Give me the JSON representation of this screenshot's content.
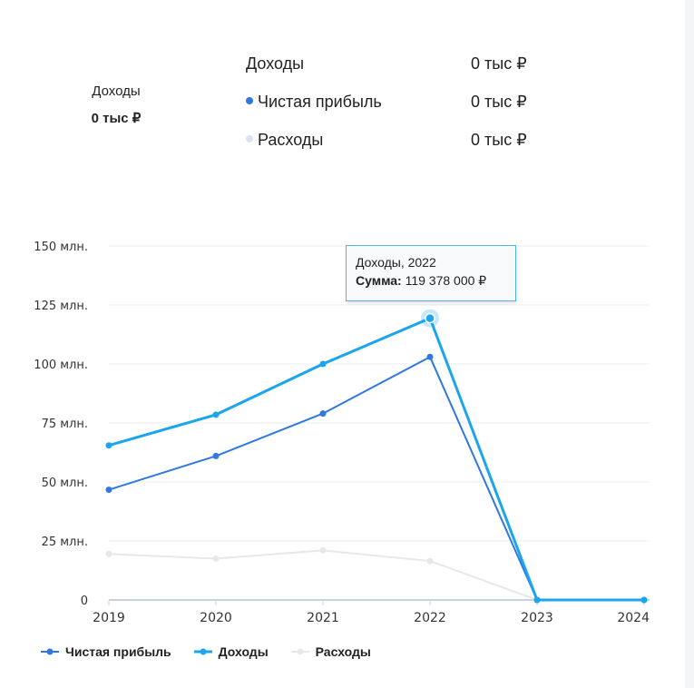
{
  "summary": {
    "left_label": "Доходы",
    "left_value": "0 тыс ₽",
    "rows": [
      {
        "name": "Доходы",
        "value": "0 тыс ₽",
        "dot_color": ""
      },
      {
        "name": "Чистая прибыль",
        "value": "0 тыс ₽",
        "dot_color": "#2f78e0"
      },
      {
        "name": "Расходы",
        "value": "0 тыс ₽",
        "dot_color": "#dde3ea"
      }
    ]
  },
  "tooltip": {
    "title": "Доходы, 2022",
    "sum_label": "Сумма:",
    "sum_value": "119 378 000 ₽"
  },
  "chart_data": {
    "type": "line",
    "x": [
      "2019",
      "2020",
      "2021",
      "2022",
      "2023",
      "2024"
    ],
    "ylim": [
      0,
      150
    ],
    "yticks": [
      0,
      25,
      50,
      75,
      100,
      125,
      150
    ],
    "ytick_labels": [
      "0",
      "25 млн.",
      "50 млн.",
      "75 млн.",
      "100 млн.",
      "125 млн.",
      "150 млн."
    ],
    "grid": true,
    "legend_position": "bottom-left",
    "highlight": {
      "series": "Доходы",
      "x": "2022"
    },
    "series": [
      {
        "name": "Расходы",
        "color": "#e8e8e8",
        "values": [
          19.5,
          17.5,
          21,
          16.5,
          0,
          0
        ]
      },
      {
        "name": "Чистая прибыль",
        "color": "#2f78e0",
        "values": [
          46.7,
          61,
          79,
          103,
          0,
          0
        ]
      },
      {
        "name": "Доходы",
        "color": "#1aa5ec",
        "values": [
          65.5,
          78.5,
          100,
          119.378,
          0,
          0
        ]
      }
    ],
    "legend": [
      "Чистая прибыль",
      "Доходы",
      "Расходы"
    ]
  }
}
